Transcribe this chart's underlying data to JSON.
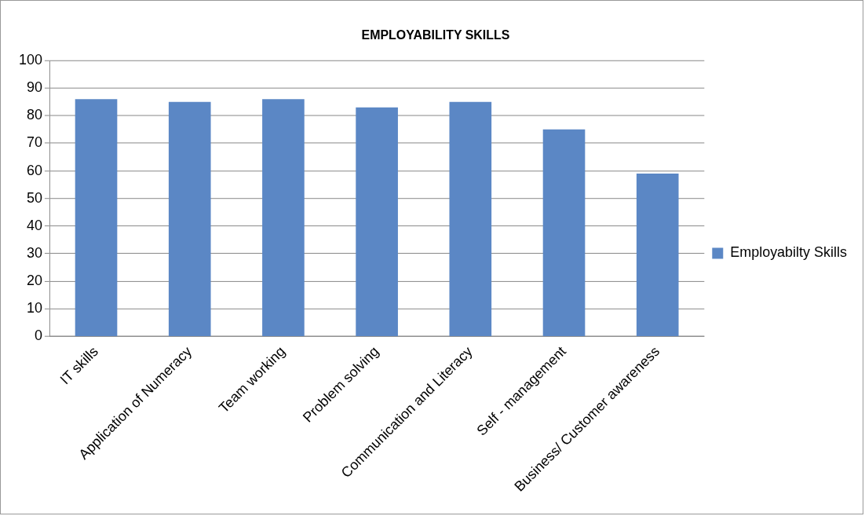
{
  "chart_data": {
    "type": "bar",
    "title": "EMPLOYABILITY SKILLS",
    "categories": [
      "IT skills",
      "Application of Numeracy",
      "Team working",
      "Problem solving",
      "Communication and Literacy",
      "Self - management",
      "Business/ Customer awareness"
    ],
    "series": [
      {
        "name": "Employabilty Skills",
        "color": "#5b87c5",
        "values": [
          86,
          85,
          86,
          83,
          85,
          75,
          59
        ]
      }
    ],
    "ylim": [
      0,
      100
    ],
    "yticks": [
      0,
      10,
      20,
      30,
      40,
      50,
      60,
      70,
      80,
      90,
      100
    ],
    "grid": "y",
    "legend": "right"
  }
}
